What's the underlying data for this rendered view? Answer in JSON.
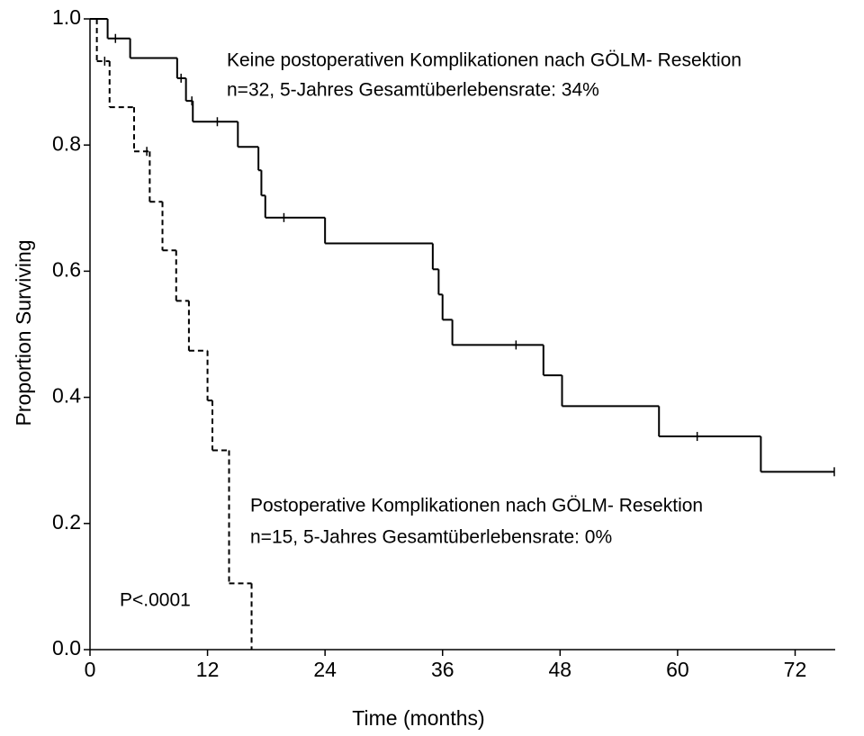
{
  "chart_data": {
    "type": "step",
    "xlabel": "Time (months)",
    "ylabel": "Proportion Surviving",
    "xlim": [
      0,
      76
    ],
    "ylim": [
      0,
      1
    ],
    "xticks": [
      0,
      12,
      24,
      36,
      48,
      60,
      72
    ],
    "yticks": [
      {
        "value": 0,
        "label": "0.0"
      },
      {
        "value": 0.2,
        "label": "0.2"
      },
      {
        "value": 0.4,
        "label": "0.4"
      },
      {
        "value": 0.6,
        "label": "0.6"
      },
      {
        "value": 0.8,
        "label": "0.8"
      },
      {
        "value": 1,
        "label": "1.0"
      }
    ],
    "annotations": [
      "Keine postoperativen Komplikationen nach GÖLM- Resektion",
      "n=32, 5-Jahres Gesamtüberlebensrate: 34%",
      "Postoperative Komplikationen nach GÖLM- Resektion",
      "n=15, 5-Jahres Gesamtüberlebensrate: 0%",
      "P<.0001"
    ],
    "series": [
      {
        "color": "#000000",
        "line_style": "solid",
        "x": [
          0,
          1.8,
          4.1,
          8.9,
          9.8,
          10.5,
          15.1,
          17.2,
          17.5,
          17.9,
          24.0,
          35.0,
          35.6,
          36.0,
          37.0,
          46.3,
          48.2,
          58.1,
          68.5,
          76
        ],
        "values": [
          1.0,
          0.969,
          0.938,
          0.906,
          0.87,
          0.837,
          0.797,
          0.76,
          0.72,
          0.685,
          0.644,
          0.603,
          0.563,
          0.523,
          0.483,
          0.435,
          0.386,
          0.338,
          0.282,
          0.282
        ],
        "censored_x": [
          2.6,
          9.3,
          10.4,
          13.0,
          19.8,
          43.5,
          62.0,
          76
        ],
        "censored_y": [
          0.969,
          0.906,
          0.87,
          0.837,
          0.685,
          0.483,
          0.338,
          0.282
        ]
      },
      {
        "color": "#000000",
        "line_style": "dashed",
        "x": [
          0,
          0.7,
          2.0,
          4.5,
          6.1,
          7.4,
          8.8,
          10.1,
          12.0,
          12.5,
          14.2,
          16.5
        ],
        "values": [
          1.0,
          0.933,
          0.86,
          0.79,
          0.71,
          0.633,
          0.553,
          0.474,
          0.395,
          0.316,
          0.105,
          0
        ],
        "censored_x": [
          1.5,
          5.8
        ],
        "censored_y": [
          0.933,
          0.79
        ]
      }
    ]
  }
}
